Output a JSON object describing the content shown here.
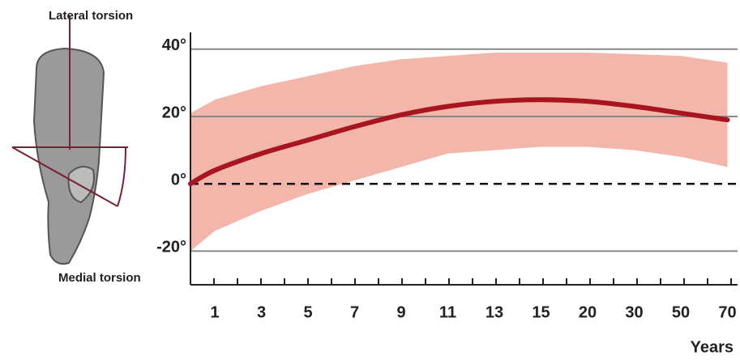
{
  "chart_data": {
    "type": "line",
    "annotations": [
      "Lateral torsion",
      "Medial torsion"
    ],
    "xlabel": "Years",
    "categories": [
      null,
      "1",
      "3",
      "5",
      "7",
      "9",
      "11",
      "13",
      "15",
      "20",
      "30",
      "50",
      "70"
    ],
    "series": [
      {
        "color": "#a8141f",
        "values": [
          0,
          4,
          9,
          13,
          17,
          20.5,
          23,
          24.5,
          25,
          24.5,
          23,
          21,
          19
        ],
        "band_upper": [
          21,
          25,
          29,
          32,
          35,
          37,
          38,
          39,
          39,
          39,
          38.5,
          38,
          36
        ],
        "band_lower": [
          -20,
          -14,
          -8,
          -3,
          1,
          5,
          9,
          10,
          11,
          11,
          10,
          8,
          5
        ],
        "band_color": "#f3b6aa"
      }
    ],
    "ylim": [
      -30,
      45
    ],
    "yticks": [
      {
        "value": 40,
        "label": "40°"
      },
      {
        "value": 20,
        "label": "20°"
      },
      {
        "value": 0,
        "label": "0°"
      },
      {
        "value": -20,
        "label": "-20°"
      }
    ],
    "grid": true
  }
}
